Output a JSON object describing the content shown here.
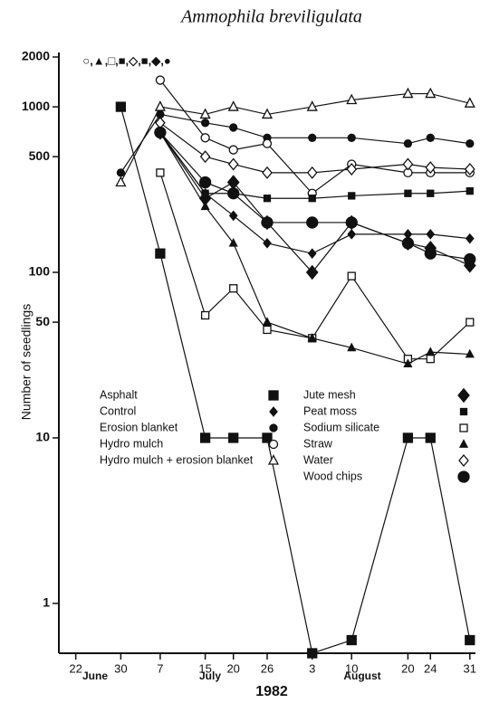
{
  "chart_data": {
    "type": "line",
    "title": "Ammophila breviligulata",
    "y_label": "Number of seedlings",
    "log_scale": true,
    "grid": false,
    "annotations": [
      "June",
      "July",
      "August",
      "1982",
      "○,▲,□,■,◇,■,◆,●"
    ],
    "x": [
      "1982-06-30",
      "1982-07-07",
      "1982-07-15",
      "1982-07-20",
      "1982-07-26",
      "1982-08-03",
      "1982-08-10",
      "1982-08-20",
      "1982-08-24",
      "1982-08-31"
    ],
    "xlim": [
      "1982-06-19",
      "1982-09-01"
    ],
    "xticks": [
      {
        "value": "1982-06-22",
        "label": "22"
      },
      {
        "value": "1982-06-30",
        "label": "30"
      },
      {
        "value": "1982-07-07",
        "label": "7"
      },
      {
        "value": "1982-07-15",
        "label": "15"
      },
      {
        "value": "1982-07-20",
        "label": "20"
      },
      {
        "value": "1982-07-26",
        "label": "26"
      },
      {
        "value": "1982-08-03",
        "label": "3"
      },
      {
        "value": "1982-08-10",
        "label": "10"
      },
      {
        "value": "1982-08-20",
        "label": "20"
      },
      {
        "value": "1982-08-24",
        "label": "24"
      },
      {
        "value": "1982-08-31",
        "label": "31"
      }
    ],
    "ylim": [
      0.5,
      2000
    ],
    "yticks": [
      1,
      10,
      50,
      100,
      500,
      1000,
      2000
    ],
    "series": [
      {
        "name": "Asphalt",
        "marker": "square",
        "filled": true,
        "size": 5,
        "color": "#111",
        "values": [
          1000,
          130,
          10,
          10,
          10,
          0.5,
          0.6,
          10,
          10,
          0.6
        ]
      },
      {
        "name": "Control",
        "marker": "diamond",
        "filled": true,
        "size": 4,
        "color": "#111",
        "values": [
          null,
          700,
          300,
          220,
          150,
          130,
          170,
          170,
          170,
          160
        ]
      },
      {
        "name": "Erosion blanket",
        "marker": "circle",
        "filled": true,
        "size": 4,
        "color": "#111",
        "values": [
          400,
          900,
          800,
          750,
          650,
          650,
          650,
          600,
          650,
          600
        ]
      },
      {
        "name": "Hydro mulch",
        "marker": "circle",
        "filled": false,
        "size": 4.5,
        "color": "#111",
        "values": [
          null,
          1450,
          650,
          550,
          600,
          300,
          450,
          400,
          400,
          400
        ]
      },
      {
        "name": "Hydro mulch + erosion blanket",
        "marker": "triangle",
        "filled": false,
        "size": 5,
        "color": "#111",
        "values": [
          350,
          1000,
          900,
          1000,
          900,
          1000,
          1100,
          1200,
          1200,
          1050
        ]
      },
      {
        "name": "Jute mesh",
        "marker": "diamond",
        "filled": true,
        "size": 6,
        "color": "#111",
        "values": [
          null,
          700,
          280,
          350,
          200,
          100,
          200,
          150,
          140,
          110
        ]
      },
      {
        "name": "Peat moss",
        "marker": "square",
        "filled": true,
        "size": 3.5,
        "color": "#111",
        "values": [
          null,
          700,
          300,
          300,
          280,
          280,
          290,
          300,
          300,
          310
        ]
      },
      {
        "name": "Sodium silicate",
        "marker": "square",
        "filled": false,
        "size": 4,
        "color": "#111",
        "values": [
          null,
          400,
          55,
          80,
          45,
          40,
          95,
          30,
          30,
          50
        ]
      },
      {
        "name": "Straw",
        "marker": "triangle",
        "filled": true,
        "size": 4,
        "color": "#111",
        "values": [
          null,
          700,
          250,
          150,
          50,
          40,
          35,
          28,
          33,
          32
        ]
      },
      {
        "name": "Water",
        "marker": "diamond",
        "filled": false,
        "size": 5,
        "color": "#111",
        "values": [
          null,
          800,
          500,
          450,
          400,
          400,
          420,
          450,
          430,
          420
        ]
      },
      {
        "name": "Wood chips",
        "marker": "circle",
        "filled": true,
        "size": 6,
        "color": "#111",
        "values": [
          null,
          700,
          350,
          300,
          200,
          200,
          200,
          150,
          130,
          120
        ]
      }
    ]
  }
}
